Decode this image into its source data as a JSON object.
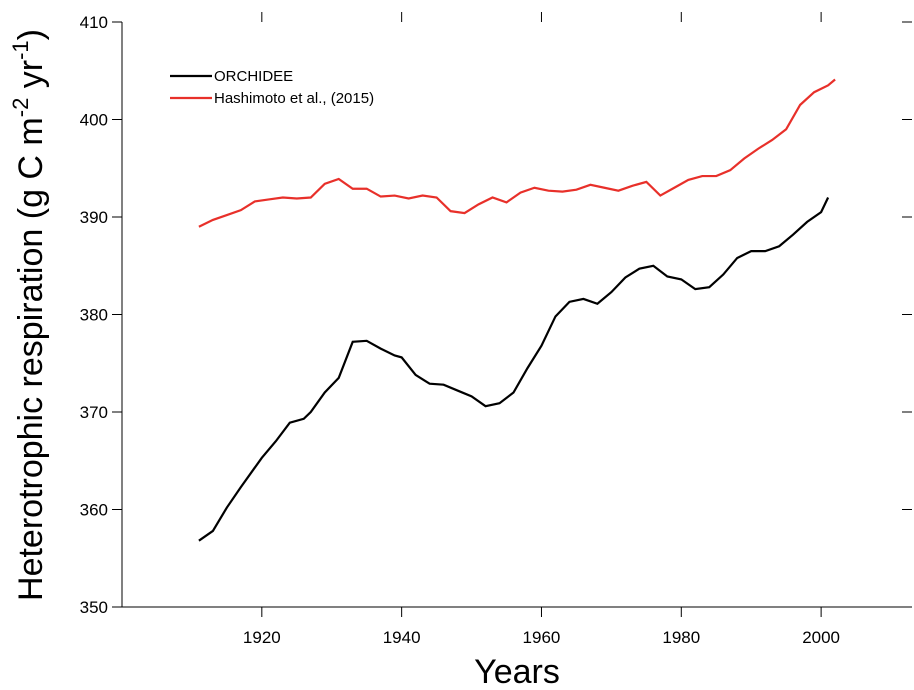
{
  "chart_data": {
    "type": "line",
    "ylabel": [
      "Heterotrophic respiration  (g C m",
      "-2",
      " yr",
      "-1",
      ")"
    ],
    "xlabel": "Years",
    "xlim": [
      1900,
      2013
    ],
    "xticks": [
      1920,
      1940,
      1960,
      1980,
      2000
    ],
    "ylim": [
      350,
      410
    ],
    "yticks": [
      350,
      360,
      370,
      380,
      390,
      400,
      410
    ],
    "legend": "upper left",
    "series": [
      {
        "name": "ORCHIDEE",
        "color": "#000000",
        "x": [
          1911,
          1913,
          1915,
          1917,
          1919,
          1920,
          1922,
          1924,
          1926,
          1927,
          1929,
          1931,
          1933,
          1935,
          1937,
          1939,
          1940,
          1942,
          1944,
          1946,
          1948,
          1950,
          1952,
          1954,
          1956,
          1958,
          1960,
          1962,
          1964,
          1966,
          1968,
          1970,
          1972,
          1974,
          1976,
          1978,
          1980,
          1982,
          1984,
          1986,
          1988,
          1990,
          1992,
          1994,
          1996,
          1998,
          2000,
          2001
        ],
        "values": [
          356.8,
          357.8,
          360.2,
          362.3,
          364.3,
          365.3,
          367.0,
          368.9,
          369.3,
          370.0,
          372.0,
          373.5,
          377.2,
          377.3,
          376.5,
          375.8,
          375.6,
          373.8,
          372.9,
          372.8,
          372.2,
          371.6,
          370.6,
          370.9,
          372.0,
          374.5,
          376.8,
          379.8,
          381.3,
          381.6,
          381.1,
          382.3,
          383.8,
          384.7,
          385.0,
          383.9,
          383.6,
          382.6,
          382.8,
          384.1,
          385.8,
          386.5,
          386.5,
          387.0,
          388.2,
          389.5,
          390.5,
          392.0
        ]
      },
      {
        "name": "Hashimoto et al., (2015)",
        "color": "#e8302a",
        "x": [
          1911,
          1913,
          1915,
          1917,
          1919,
          1921,
          1923,
          1925,
          1927,
          1929,
          1931,
          1933,
          1935,
          1937,
          1939,
          1941,
          1943,
          1945,
          1947,
          1949,
          1951,
          1953,
          1955,
          1957,
          1959,
          1961,
          1963,
          1965,
          1967,
          1969,
          1971,
          1973,
          1975,
          1977,
          1979,
          1981,
          1983,
          1985,
          1987,
          1989,
          1991,
          1993,
          1995,
          1997,
          1999,
          2001,
          2002
        ],
        "values": [
          389.0,
          389.7,
          390.2,
          390.7,
          391.6,
          391.8,
          392.0,
          391.9,
          392.0,
          393.4,
          393.9,
          392.9,
          392.9,
          392.1,
          392.2,
          391.9,
          392.2,
          392.0,
          390.6,
          390.4,
          391.3,
          392.0,
          391.5,
          392.5,
          393.0,
          392.7,
          392.6,
          392.8,
          393.3,
          393.0,
          392.7,
          393.2,
          393.6,
          392.2,
          393.0,
          393.8,
          394.2,
          394.2,
          394.8,
          396.0,
          397.0,
          397.9,
          399.0,
          401.5,
          402.8,
          403.5,
          404.1
        ]
      }
    ]
  }
}
